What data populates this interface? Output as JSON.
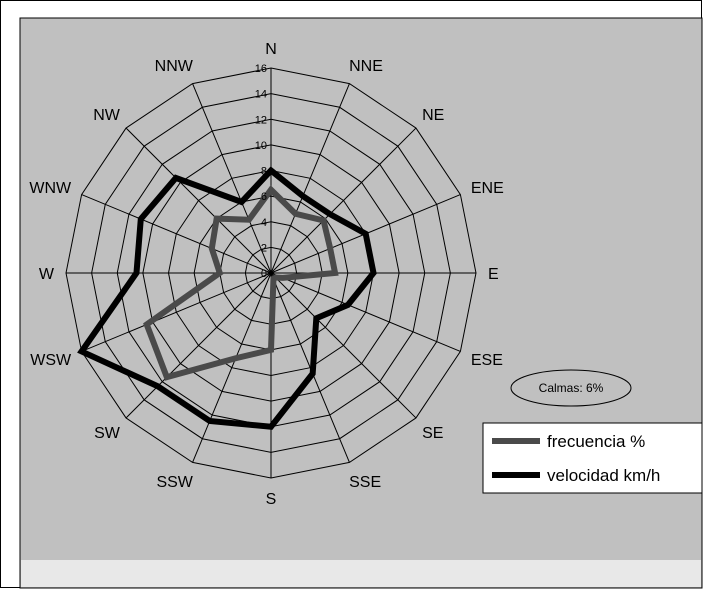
{
  "chart_data": {
    "type": "radar",
    "directions": [
      "N",
      "NNE",
      "NE",
      "ENE",
      "E",
      "ESE",
      "SE",
      "SSE",
      "S",
      "SSW",
      "SW",
      "WSW",
      "W",
      "WNW",
      "NW",
      "NNW"
    ],
    "radial_ticks": [
      "0",
      "2",
      "4",
      "6",
      "8",
      "10",
      "12",
      "14",
      "16"
    ],
    "rlim": [
      0,
      16
    ],
    "series": [
      {
        "name": "frecuencia %",
        "color": "#4a4a4a",
        "values": [
          6.5,
          5.0,
          5.8,
          5.0,
          5.0,
          1.0,
          0.5,
          0.5,
          6.0,
          7.2,
          11.5,
          10.5,
          4.0,
          5.0,
          6.0,
          4.5
        ]
      },
      {
        "name": "velocidad km/h",
        "color": "#000000",
        "values": [
          8.0,
          6.5,
          6.5,
          8.0,
          8.0,
          6.5,
          5.0,
          8.5,
          12.0,
          12.5,
          12.5,
          16.0,
          10.5,
          11.0,
          10.5,
          6.0
        ]
      }
    ],
    "legend": {
      "placement": "right",
      "items": [
        "frecuencia %",
        "velocidad km/h"
      ]
    },
    "annotation": "Calmas: 6%",
    "grid": true,
    "plot_background": "#c0c0c0"
  }
}
